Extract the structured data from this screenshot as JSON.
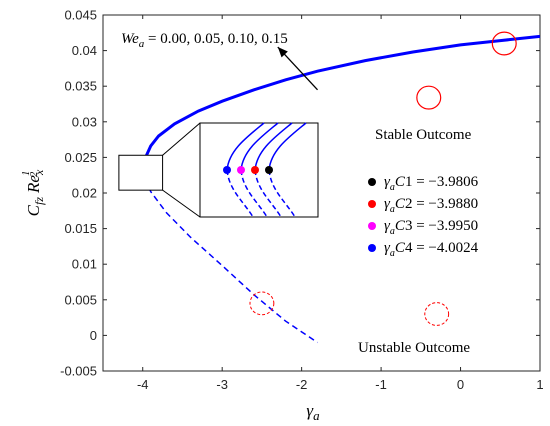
{
  "chart_data": {
    "type": "line",
    "title": "",
    "xlabel": "γ_a",
    "ylabel": "C_fz Re_x^(1/2)",
    "xlim": [
      -4.5,
      1
    ],
    "ylim": [
      -0.005,
      0.045
    ],
    "xticks": [
      "-4",
      "-3",
      "-2",
      "-1",
      "0",
      "1"
    ],
    "yticks": [
      "-0.005",
      "0",
      "0.005",
      "0.01",
      "0.015",
      "0.02",
      "0.025",
      "0.03",
      "0.035",
      "0.04",
      "0.045"
    ],
    "grid": false,
    "series": [
      {
        "label": "upper (solid)",
        "style": "solid",
        "x": [
          -4.0024,
          -3.98,
          -3.9,
          -3.8,
          -3.6,
          -3.3,
          -3.0,
          -2.6,
          -2.2,
          -1.8,
          -1.2,
          -0.6,
          0.0,
          0.5,
          1.0
        ],
        "y": [
          0.0234,
          0.0246,
          0.0266,
          0.028,
          0.0297,
          0.0315,
          0.0329,
          0.0345,
          0.0359,
          0.0371,
          0.0386,
          0.0398,
          0.0408,
          0.0414,
          0.042
        ]
      },
      {
        "label": "lower (dashed)",
        "style": "dashed",
        "x": [
          -4.0024,
          -3.98,
          -3.9,
          -3.7,
          -3.4,
          -3.0,
          -2.6,
          -2.2,
          -1.8
        ],
        "y": [
          0.0234,
          0.0222,
          0.0202,
          0.0172,
          0.0138,
          0.0098,
          0.0057,
          0.002,
          -0.001
        ]
      }
    ],
    "inset_curves": {
      "x": [
        -3.9806,
        -3.988,
        -3.995,
        -4.0024
      ],
      "colors": [
        "#000000",
        "#ff0000",
        "#ff00ff",
        "#0000ff"
      ]
    },
    "annotation_arrow": {
      "label": "We_a = 0.00, 0.05, 0.10, 0.15",
      "from": [
        -1.8,
        0.0345
      ],
      "to": [
        -2.3,
        0.0405
      ]
    },
    "ellipses_stable": [
      {
        "cx": 0.55,
        "cy": 0.041,
        "rx": 0.15,
        "ry": 0.0016
      },
      {
        "cx": -0.4,
        "cy": 0.0334,
        "rx": 0.15,
        "ry": 0.0016
      }
    ],
    "ellipses_unstable": [
      {
        "cx": -2.5,
        "cy": 0.0045,
        "rx": 0.15,
        "ry": 0.0016
      },
      {
        "cx": -0.3,
        "cy": 0.003,
        "rx": 0.15,
        "ry": 0.0016
      }
    ],
    "zoom_box": {
      "x0": -4.3,
      "x1": -3.75,
      "y0": 0.0204,
      "y1": 0.0253
    },
    "text_labels": {
      "stable": "Stable Outcome",
      "unstable": "Unstable Outcome"
    },
    "legend": {
      "placement": "right",
      "entries": [
        {
          "label": "γaC1 = −3.9806",
          "value": "−3.9806",
          "color": "#000000"
        },
        {
          "label": "γaC2 = −3.9880",
          "value": "−3.9880",
          "color": "#ff0000"
        },
        {
          "label": "γaC3 = −3.9950",
          "value": "−3.9950",
          "color": "#ff00ff"
        },
        {
          "label": "γaC4 = −4.0024",
          "value": "−4.0024",
          "color": "#0000ff"
        }
      ]
    },
    "colors": {
      "curve": "#0000ff",
      "ellipse": "#ff0000"
    }
  }
}
